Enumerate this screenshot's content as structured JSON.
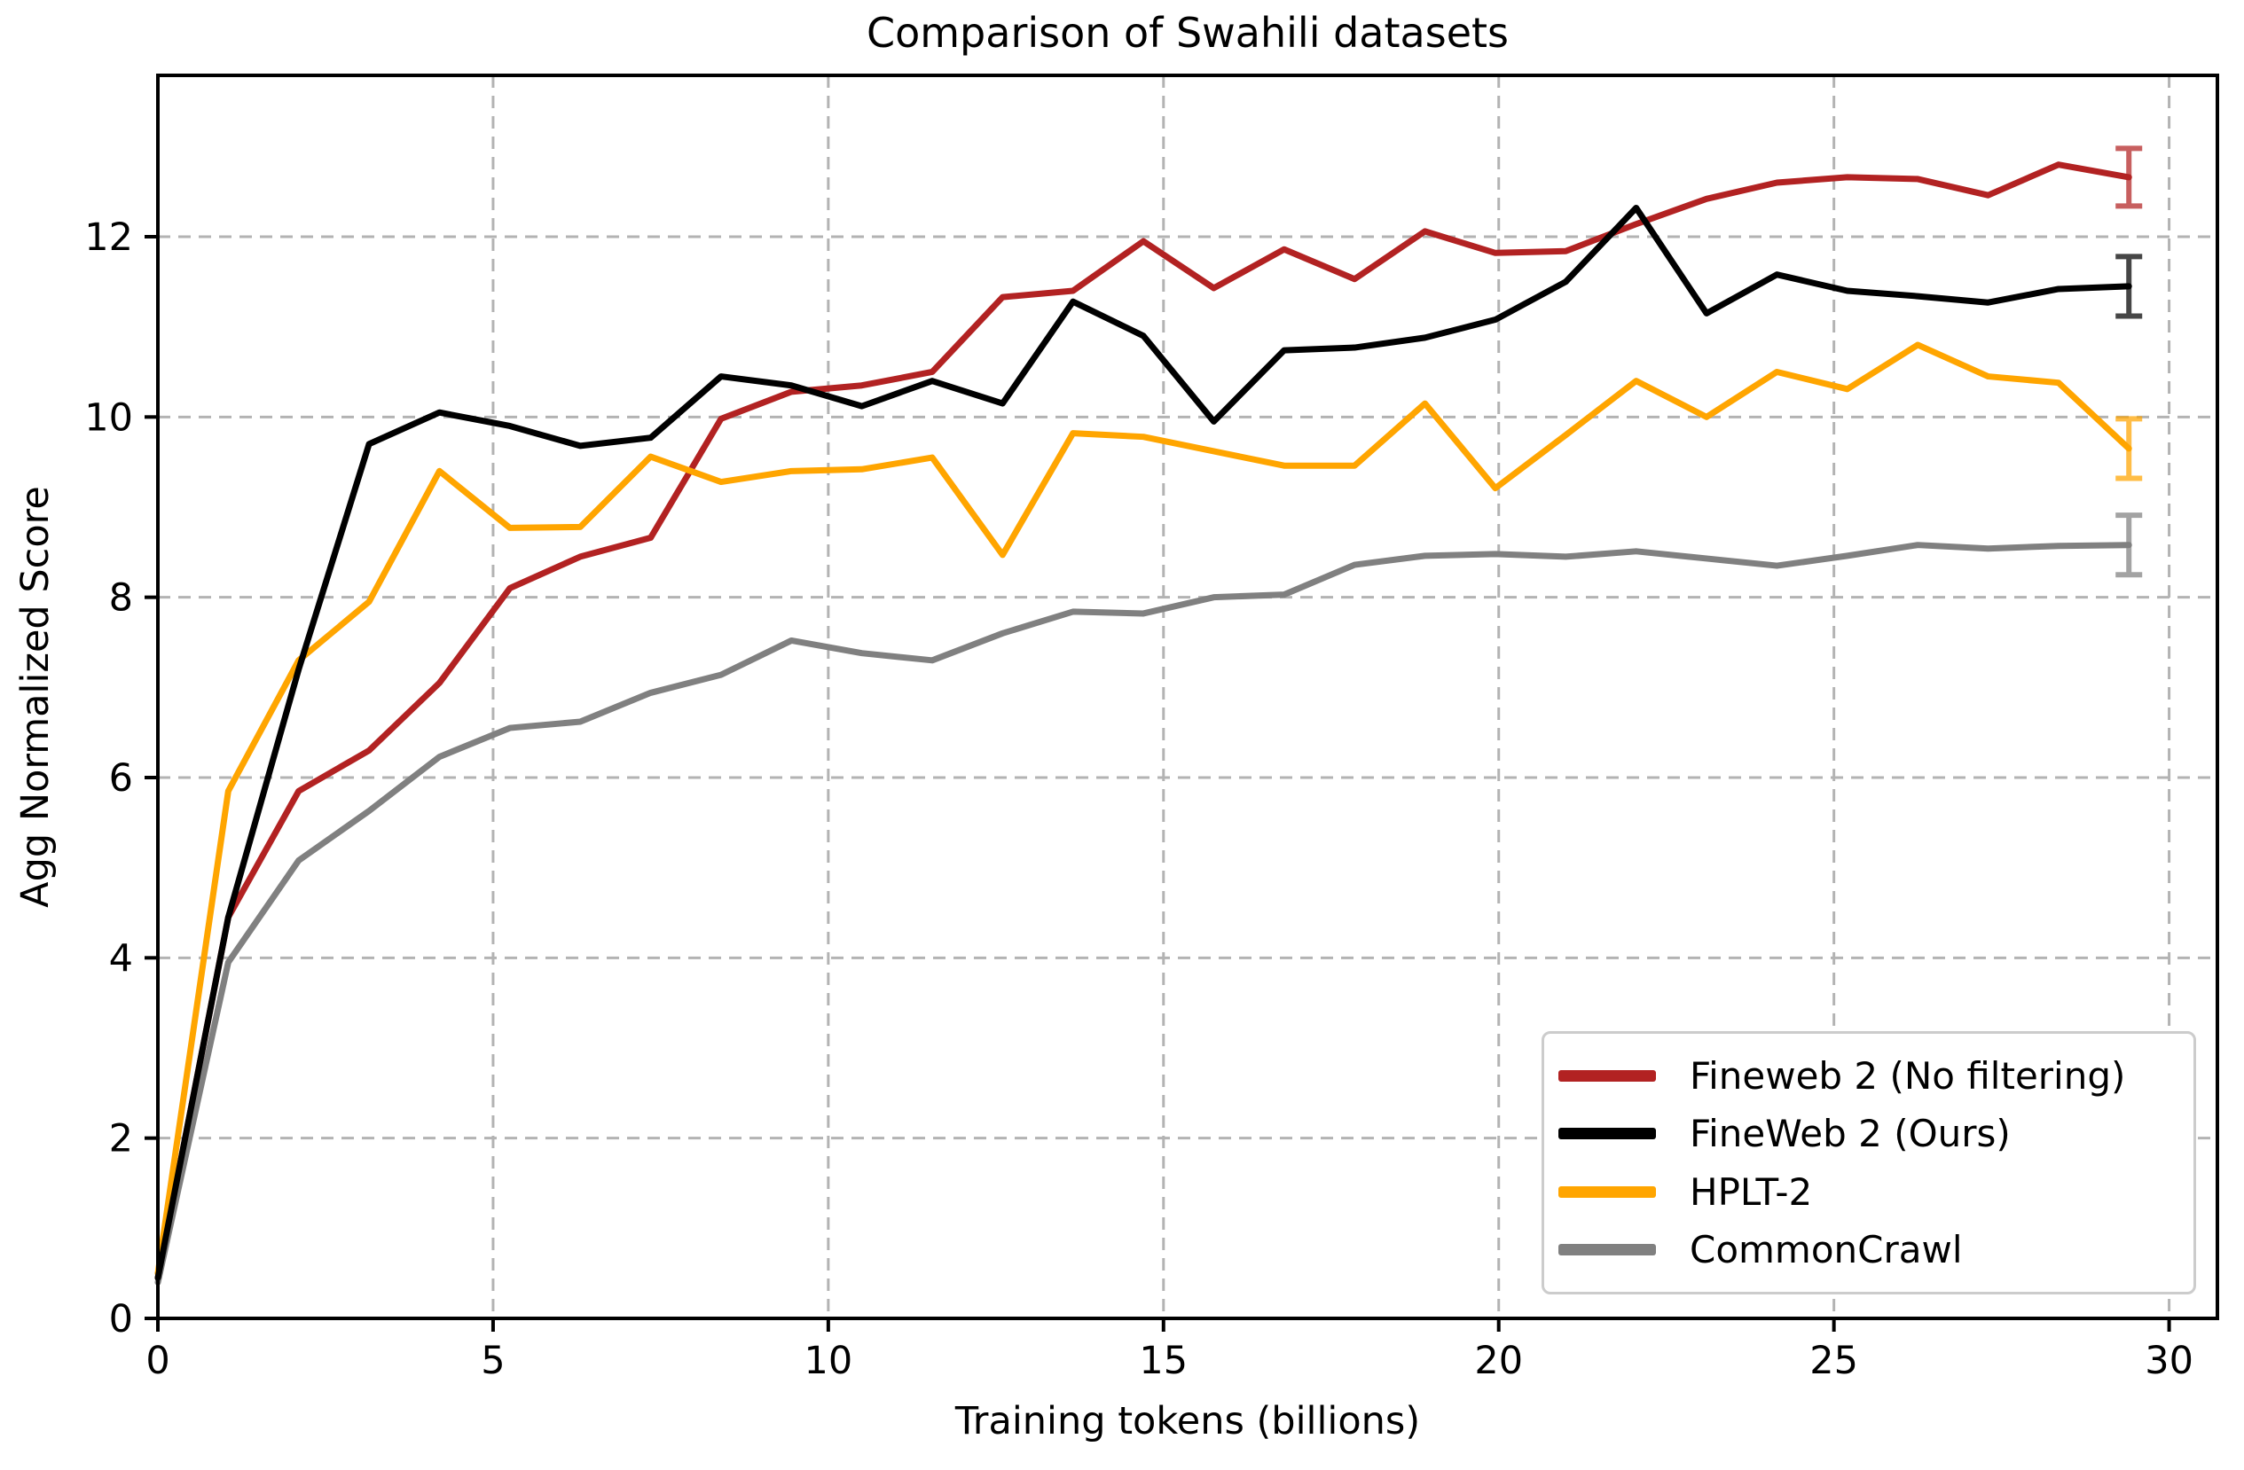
{
  "figure": {
    "title": "Comparison of Swahili datasets"
  },
  "chart_data": {
    "type": "line",
    "title": "Comparison of Swahili datasets",
    "xlabel": "Training tokens (billions)",
    "ylabel": "Agg Normalized Score",
    "xlim": [
      0,
      30.72
    ],
    "ylim": [
      0,
      13.79
    ],
    "xticks": [
      0,
      5,
      10,
      15,
      20,
      25,
      30
    ],
    "yticks": [
      0,
      2,
      4,
      6,
      8,
      10,
      12
    ],
    "grid": true,
    "grid_color": "#b3b3b3",
    "legend_position": "lower right",
    "x": [
      0,
      1.05,
      2.1,
      3.15,
      4.2,
      5.25,
      6.3,
      7.35,
      8.4,
      9.45,
      10.5,
      11.55,
      12.6,
      13.65,
      14.7,
      15.75,
      16.8,
      17.85,
      18.9,
      19.95,
      21.0,
      22.05,
      23.1,
      24.15,
      25.2,
      26.25,
      27.3,
      28.35,
      29.4
    ],
    "series": [
      {
        "name": "Fineweb 2 (No filtering)",
        "color": "#B22222",
        "values": [
          0.45,
          4.45,
          5.85,
          6.3,
          7.05,
          8.1,
          8.45,
          8.66,
          9.98,
          10.28,
          10.35,
          10.5,
          11.33,
          11.4,
          11.95,
          11.43,
          11.86,
          11.53,
          12.06,
          11.82,
          11.84,
          12.14,
          12.42,
          12.6,
          12.66,
          12.64,
          12.46,
          12.8,
          12.66
        ],
        "final_error": 0.32
      },
      {
        "name": "FineWeb 2 (Ours)",
        "color": "#000000",
        "values": [
          0.45,
          4.45,
          7.2,
          9.7,
          10.05,
          9.9,
          9.68,
          9.77,
          10.45,
          10.35,
          10.12,
          10.4,
          10.15,
          11.28,
          10.9,
          9.95,
          10.74,
          10.77,
          10.88,
          11.08,
          11.5,
          12.32,
          11.15,
          11.58,
          11.4,
          11.34,
          11.27,
          11.42,
          11.45
        ],
        "final_error": 0.33
      },
      {
        "name": "HPLT-2",
        "color": "#FFA500",
        "values": [
          0.5,
          5.85,
          7.3,
          7.95,
          9.4,
          8.77,
          8.78,
          9.56,
          9.28,
          9.4,
          9.42,
          9.55,
          8.47,
          9.82,
          9.78,
          9.62,
          9.46,
          9.46,
          10.15,
          9.21,
          9.8,
          10.4,
          10.0,
          10.5,
          10.31,
          10.8,
          10.45,
          10.38,
          9.65
        ],
        "final_error": 0.33
      },
      {
        "name": "CommonCrawl",
        "color": "#808080",
        "values": [
          0.4,
          3.95,
          5.08,
          5.63,
          6.23,
          6.55,
          6.62,
          6.94,
          7.14,
          7.52,
          7.38,
          7.3,
          7.6,
          7.84,
          7.82,
          8.0,
          8.03,
          8.36,
          8.46,
          8.48,
          8.45,
          8.51,
          8.43,
          8.35,
          8.46,
          8.58,
          8.54,
          8.57,
          8.58
        ],
        "final_error": 0.33
      }
    ]
  }
}
